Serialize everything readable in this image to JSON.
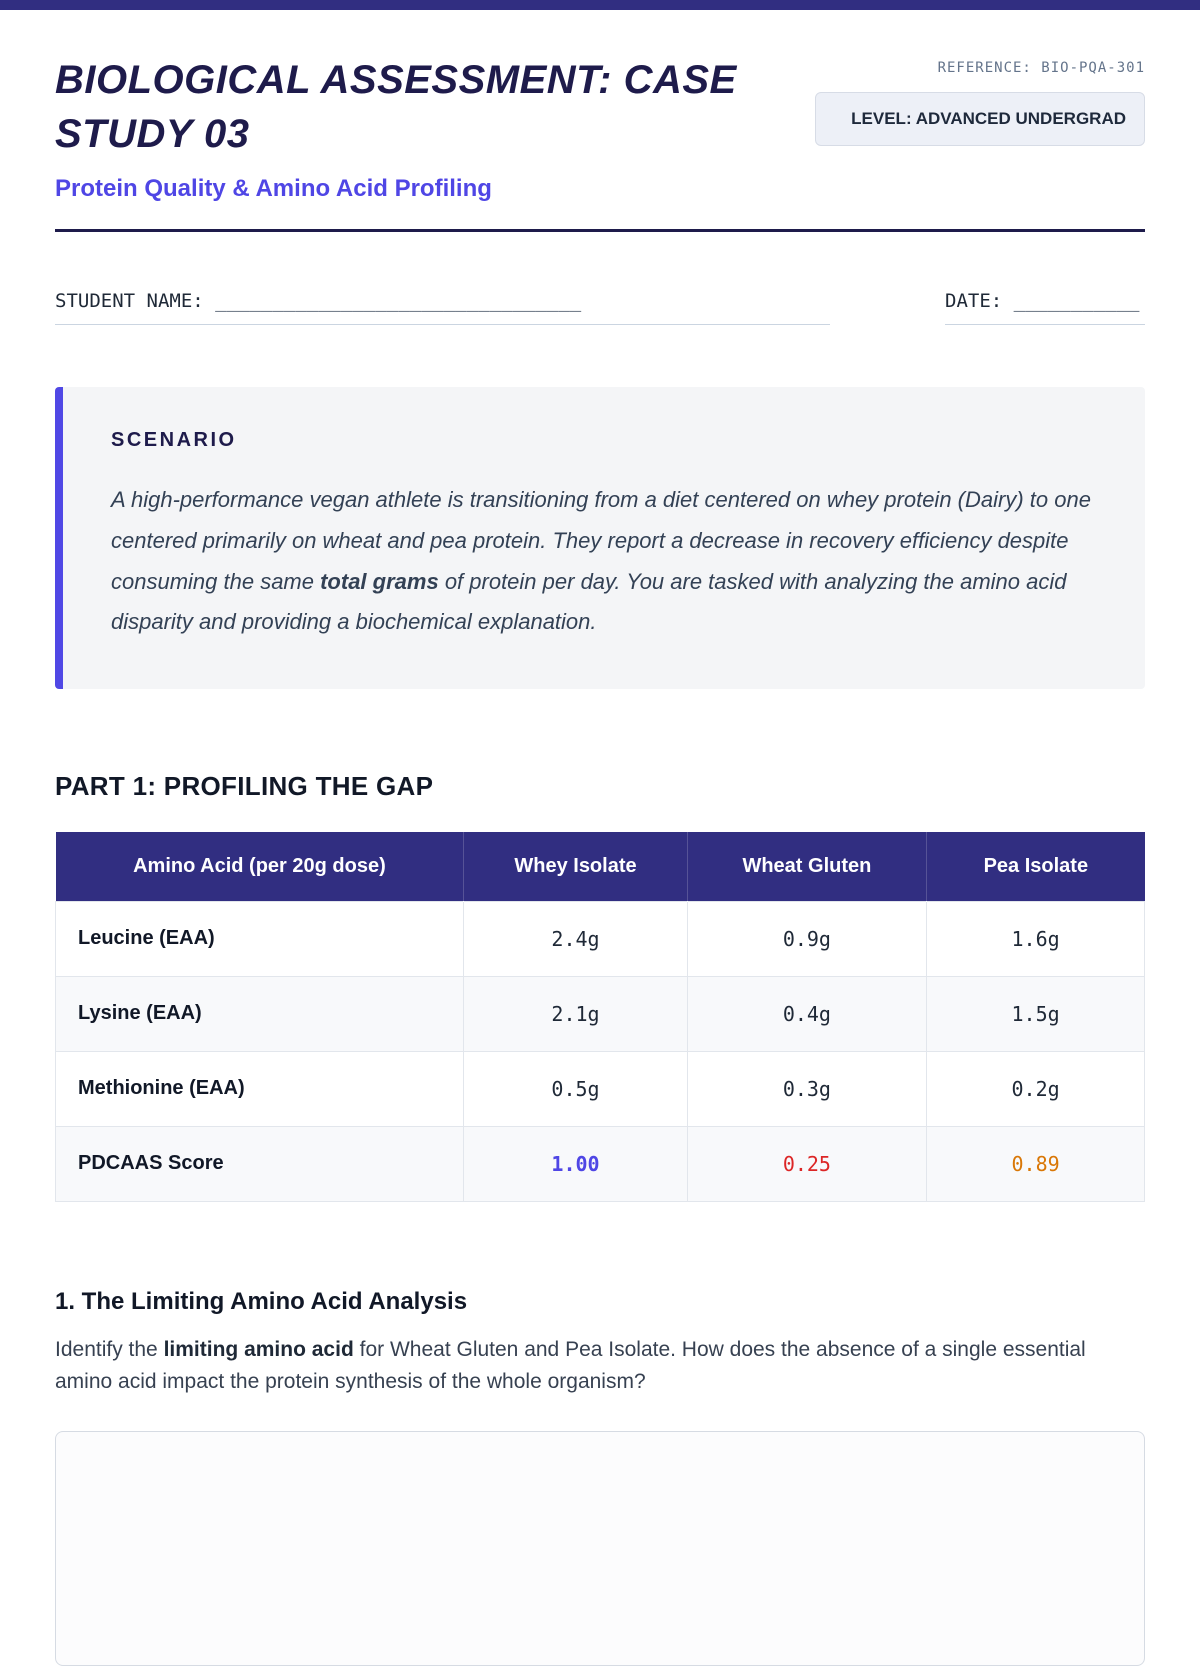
{
  "colors": {
    "accent": "#4f46e5",
    "table_header_bg": "#312e81",
    "topbar": "#312e81",
    "score_whey": "#4f46e5",
    "score_wheat": "#dc2626",
    "score_pea": "#d97706"
  },
  "header": {
    "reference": "REFERENCE: BIO-PQA-301",
    "level_badge": "LEVEL: ADVANCED UNDERGRAD",
    "title": "BIOLOGICAL ASSESSMENT: CASE STUDY 03",
    "subtitle": "Protein Quality & Amino Acid Profiling"
  },
  "fields": {
    "student_label": "STUDENT NAME:",
    "student_line": "________________________________",
    "date_label": "DATE:",
    "date_line": "___________"
  },
  "scenario": {
    "heading": "SCENARIO",
    "text_before": "A high-performance vegan athlete is transitioning from a diet centered on whey protein (Dairy) to one centered primarily on wheat and pea protein. They report a decrease in recovery efficiency despite consuming the same ",
    "text_bold": "total grams",
    "text_after": " of protein per day. You are tasked with analyzing the amino acid disparity and providing a biochemical explanation."
  },
  "part1": {
    "heading": "PART 1: PROFILING THE GAP"
  },
  "table": {
    "headers": [
      "Amino Acid (per 20g dose)",
      "Whey Isolate",
      "Wheat Gluten",
      "Pea Isolate"
    ],
    "rows": [
      {
        "label": "Leucine (EAA)",
        "values": [
          "2.4g",
          "0.9g",
          "1.6g"
        ]
      },
      {
        "label": "Lysine (EAA)",
        "values": [
          "2.1g",
          "0.4g",
          "1.5g"
        ]
      },
      {
        "label": "Methionine (EAA)",
        "values": [
          "0.5g",
          "0.3g",
          "0.2g"
        ]
      },
      {
        "label": "PDCAAS Score",
        "values": [
          "1.00",
          "0.25",
          "0.89"
        ]
      }
    ]
  },
  "question1": {
    "heading": "1. The Limiting Amino Acid Analysis",
    "text_before": "Identify the ",
    "text_bold": "limiting amino acid",
    "text_after": " for Wheat Gluten and Pea Isolate. How does the absence of a single essential amino acid impact the protein synthesis of the whole organism?"
  }
}
